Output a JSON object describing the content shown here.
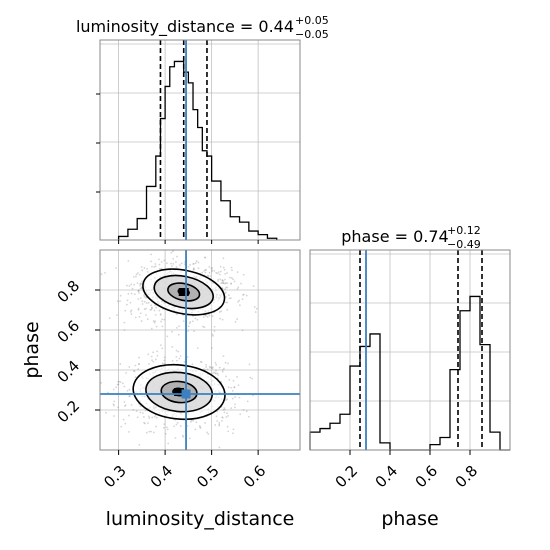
{
  "chart_data": {
    "type": "corner",
    "parameters": [
      "luminosity_distance",
      "phase"
    ],
    "truths": {
      "luminosity_distance": 0.445,
      "phase": 0.28
    },
    "colors": {
      "hist": "#000000",
      "truth": "#3d7fbf",
      "grid": "#c0c0c0",
      "point": "#888888"
    },
    "panels": {
      "luminosity_distance": {
        "title": {
          "main": "luminosity_distance = 0.44",
          "sup": "+0.05",
          "sub": "−0.05"
        },
        "xlim": [
          0.26,
          0.69
        ],
        "xticks": [
          0.3,
          0.4,
          0.5,
          0.6
        ],
        "xtick_labels": [
          "0.3",
          "0.4",
          "0.5",
          "0.6"
        ],
        "quantiles": [
          0.39,
          0.44,
          0.49
        ],
        "bin_edges": [
          0.3,
          0.32,
          0.34,
          0.36,
          0.38,
          0.39,
          0.4,
          0.41,
          0.42,
          0.43,
          0.44,
          0.45,
          0.46,
          0.47,
          0.48,
          0.49,
          0.5,
          0.52,
          0.54,
          0.56,
          0.58,
          0.6,
          0.62,
          0.64
        ],
        "counts": [
          0.02,
          0.06,
          0.12,
          0.3,
          0.47,
          0.68,
          0.86,
          0.97,
          1.0,
          1.0,
          0.94,
          0.88,
          0.73,
          0.63,
          0.5,
          0.47,
          0.33,
          0.22,
          0.13,
          0.1,
          0.05,
          0.03,
          0.01
        ]
      },
      "phase": {
        "title": {
          "main": "phase = 0.74",
          "sup": "+0.12",
          "sub": "−0.49"
        },
        "xlim": [
          0.0,
          1.0
        ],
        "xticks": [
          0.2,
          0.4,
          0.6,
          0.8
        ],
        "xtick_labels": [
          "0.2",
          "0.4",
          "0.6",
          "0.8"
        ],
        "quantiles": [
          0.25,
          0.74,
          0.86
        ],
        "bin_edges": [
          0.0,
          0.05,
          0.1,
          0.15,
          0.2,
          0.25,
          0.3,
          0.35,
          0.4,
          0.45,
          0.5,
          0.55,
          0.6,
          0.65,
          0.7,
          0.75,
          0.8,
          0.85,
          0.9,
          0.95,
          1.0
        ],
        "counts": [
          0.1,
          0.12,
          0.15,
          0.2,
          0.47,
          0.58,
          0.65,
          0.04,
          0.0,
          0.0,
          0.0,
          0.0,
          0.03,
          0.07,
          0.45,
          0.78,
          0.86,
          0.59,
          0.1,
          0.0
        ]
      },
      "joint": {
        "xlim": [
          0.26,
          0.69
        ],
        "ylim": [
          0.0,
          1.0
        ],
        "yticks": [
          0.2,
          0.4,
          0.6,
          0.8
        ],
        "ytick_labels": [
          "0.2",
          "0.4",
          "0.6",
          "0.8"
        ],
        "modes": [
          {
            "x": 0.44,
            "y": 0.79,
            "sx": 0.045,
            "sy": 0.06,
            "weight": 0.55
          },
          {
            "x": 0.43,
            "y": 0.29,
            "sx": 0.05,
            "sy": 0.075,
            "weight": 0.45
          }
        ],
        "contour_levels": [
          0.9,
          0.65,
          0.35,
          0.12
        ]
      }
    }
  }
}
